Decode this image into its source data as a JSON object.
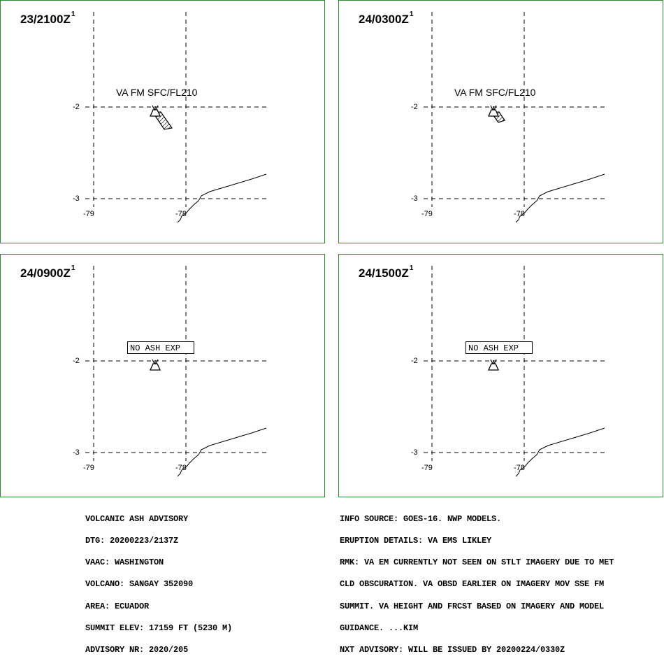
{
  "panels": [
    {
      "time": "23/2100Z",
      "sup": "1",
      "label": "VA FM SFC/FL210",
      "label_boxed": false,
      "plume": "long"
    },
    {
      "time": "24/0300Z",
      "sup": "1",
      "label": "VA FM SFC/FL210",
      "label_boxed": false,
      "plume": "short"
    },
    {
      "time": "24/0900Z",
      "sup": "1",
      "label": "NO ASH EXP",
      "label_boxed": true,
      "plume": "none"
    },
    {
      "time": "24/1500Z",
      "sup": "1",
      "label": "NO ASH EXP",
      "label_boxed": true,
      "plume": "none"
    }
  ],
  "grid": {
    "lat_labels": [
      "-2",
      "-3"
    ],
    "lon_labels": [
      "-79",
      "-78"
    ],
    "line_color": "#000000"
  },
  "frame_color": "#2e8b2e",
  "icons": [
    "volcano-icon"
  ],
  "advisory_left": [
    "VOLCANIC ASH ADVISORY",
    "DTG: 20200223/2137Z",
    "VAAC: WASHINGTON",
    "VOLCANO: SANGAY 352090",
    "AREA: ECUADOR",
    "SUMMIT ELEV: 17159 FT (5230 M)",
    "ADVISORY NR: 2020/205"
  ],
  "advisory_right": [
    "INFO SOURCE: GOES-16. NWP MODELS.",
    "ERUPTION DETAILS: VA EMS LIKLEY",
    "RMK: VA EM CURRENTLY NOT SEEN ON STLT IMAGERY DUE TO MET",
    "CLD OBSCURATION. VA OBSD EARLIER ON IMAGERY MOV SSE FM",
    "SUMMIT. VA HEIGHT AND FRCST BASED ON IMAGERY AND MODEL",
    "GUIDANCE. ...KIM",
    "NXT ADVISORY: WILL BE ISSUED BY 20200224/0330Z"
  ]
}
